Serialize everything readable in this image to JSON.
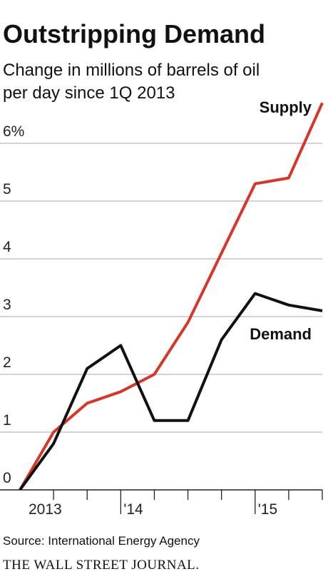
{
  "chart_data": {
    "type": "line",
    "title": "Outstripping Demand",
    "subtitle": [
      "Change in millions of barrels of oil",
      "per day since 1Q 2013"
    ],
    "categories": [
      "2013",
      null,
      null,
      "'14",
      null,
      null,
      null,
      "'15",
      null,
      null
    ],
    "series": [
      {
        "name": "Supply",
        "color": "#d6372b",
        "values": [
          0,
          1.0,
          1.5,
          1.7,
          2.0,
          2.9,
          4.1,
          5.3,
          5.4,
          6.7
        ]
      },
      {
        "name": "Demand",
        "color": "#111111",
        "values": [
          0,
          0.8,
          2.1,
          2.5,
          1.2,
          1.2,
          2.6,
          3.4,
          3.2,
          3.1
        ]
      }
    ],
    "ylim": [
      0,
      6.7
    ],
    "yticks": [
      0,
      1,
      2,
      3,
      4,
      5,
      {
        "value": 6,
        "label": "6%"
      }
    ],
    "grid": true,
    "source": "Source: International Energy Agency",
    "credit": "THE WALL STREET JOURNAL."
  }
}
